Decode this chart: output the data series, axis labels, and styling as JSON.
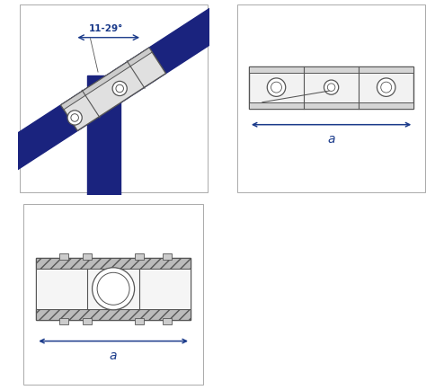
{
  "bg_color": "#ffffff",
  "line_color": "#555555",
  "dim_color": "#1a3a8a",
  "rail_color": "#1a237e",
  "fitting_fill": "#e0e0e0",
  "fitting_fill2": "#cccccc",
  "angle_label": "11-29°",
  "dim_label_a": "a",
  "fig_width": 4.85,
  "fig_height": 4.35,
  "panel_border_color": "#aaaaaa"
}
